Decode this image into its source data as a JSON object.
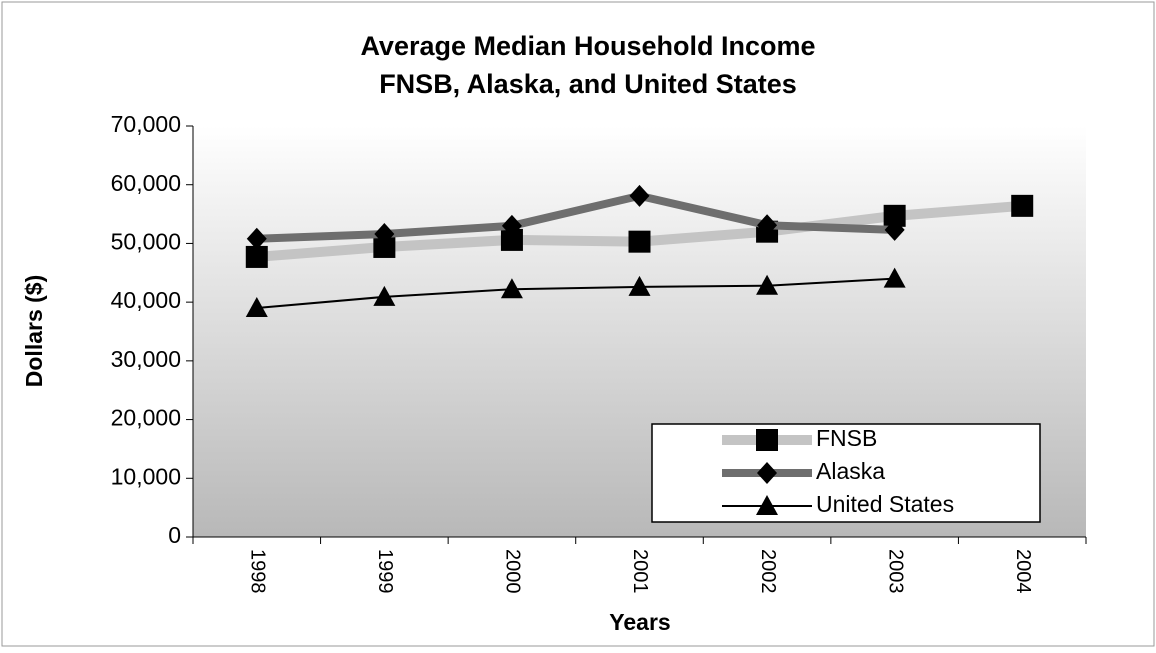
{
  "chart_data": {
    "type": "line",
    "title": [
      "Average Median Household Income",
      "FNSB, Alaska, and United States"
    ],
    "x_label": "Years",
    "y_label": "Dollars ($)",
    "categories": [
      "1998",
      "1999",
      "2000",
      "2001",
      "2002",
      "2003",
      "2004"
    ],
    "series": [
      {
        "name": "FNSB",
        "color": "#c4c4c4",
        "marker": "square",
        "values": [
          47700,
          49400,
          50600,
          50300,
          52000,
          54700,
          56400
        ]
      },
      {
        "name": "Alaska",
        "color": "#6e6e6e",
        "marker": "diamond",
        "values": [
          50800,
          51600,
          53000,
          58100,
          53100,
          52300,
          null
        ]
      },
      {
        "name": "United States",
        "color": "#000000",
        "marker": "triangle",
        "values": [
          39000,
          40900,
          42200,
          42600,
          42800,
          44000,
          null
        ]
      }
    ],
    "ylim": [
      0,
      70000
    ],
    "yticks": [
      0,
      {
        "value": 10000,
        "label": "10,000"
      },
      {
        "value": 20000,
        "label": "20,000"
      },
      {
        "value": 30000,
        "label": "30,000"
      },
      {
        "value": 40000,
        "label": "40,000"
      },
      {
        "value": 50000,
        "label": "50,000"
      },
      {
        "value": 60000,
        "label": "60,000"
      },
      {
        "value": 70000,
        "label": "70,000"
      }
    ],
    "legend": "lower right"
  }
}
